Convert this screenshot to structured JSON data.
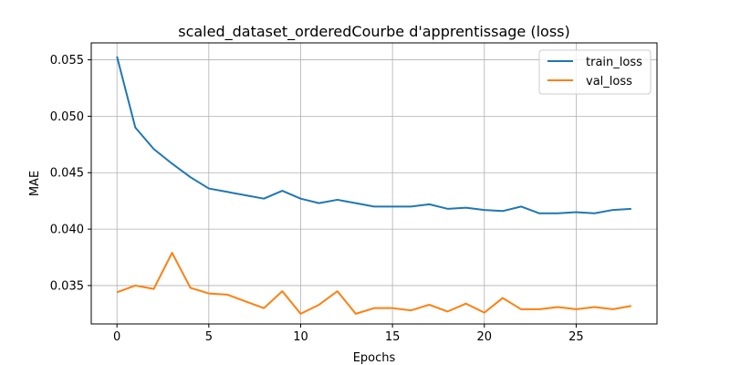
{
  "chart_data": {
    "type": "line",
    "title": "scaled_dataset_orderedCourbe d'apprentissage (loss)",
    "xlabel": "Epochs",
    "ylabel": "MAE",
    "xlim": [
      -1.4,
      29.4
    ],
    "ylim": [
      0.0316,
      0.0565
    ],
    "x_ticks": [
      0,
      5,
      10,
      15,
      20,
      25
    ],
    "y_ticks": [
      0.035,
      0.04,
      0.045,
      0.05,
      0.055
    ],
    "y_tick_labels": [
      "0.035",
      "0.040",
      "0.045",
      "0.050",
      "0.055"
    ],
    "grid": true,
    "legend_position": "top-right",
    "x": [
      0,
      1,
      2,
      3,
      4,
      5,
      6,
      7,
      8,
      9,
      10,
      11,
      12,
      13,
      14,
      15,
      16,
      17,
      18,
      19,
      20,
      21,
      22,
      23,
      24,
      25,
      26,
      27,
      28
    ],
    "series": [
      {
        "name": "train_loss",
        "color": "#1f77b4",
        "values": [
          0.0553,
          0.049,
          0.0471,
          0.0458,
          0.0446,
          0.0436,
          0.0433,
          0.043,
          0.0427,
          0.0434,
          0.0427,
          0.0423,
          0.0426,
          0.0423,
          0.042,
          0.042,
          0.042,
          0.0422,
          0.0418,
          0.0419,
          0.0417,
          0.0416,
          0.042,
          0.0414,
          0.0414,
          0.0415,
          0.0414,
          0.0417,
          0.0418
        ]
      },
      {
        "name": "val_loss",
        "color": "#ff7f0e",
        "values": [
          0.0344,
          0.035,
          0.0347,
          0.0379,
          0.0348,
          0.0343,
          0.0342,
          0.0336,
          0.033,
          0.0345,
          0.0325,
          0.0333,
          0.0345,
          0.0325,
          0.033,
          0.033,
          0.0328,
          0.0333,
          0.0327,
          0.0334,
          0.0326,
          0.0339,
          0.0329,
          0.0329,
          0.0331,
          0.0329,
          0.0331,
          0.0329,
          0.0332
        ]
      }
    ]
  }
}
